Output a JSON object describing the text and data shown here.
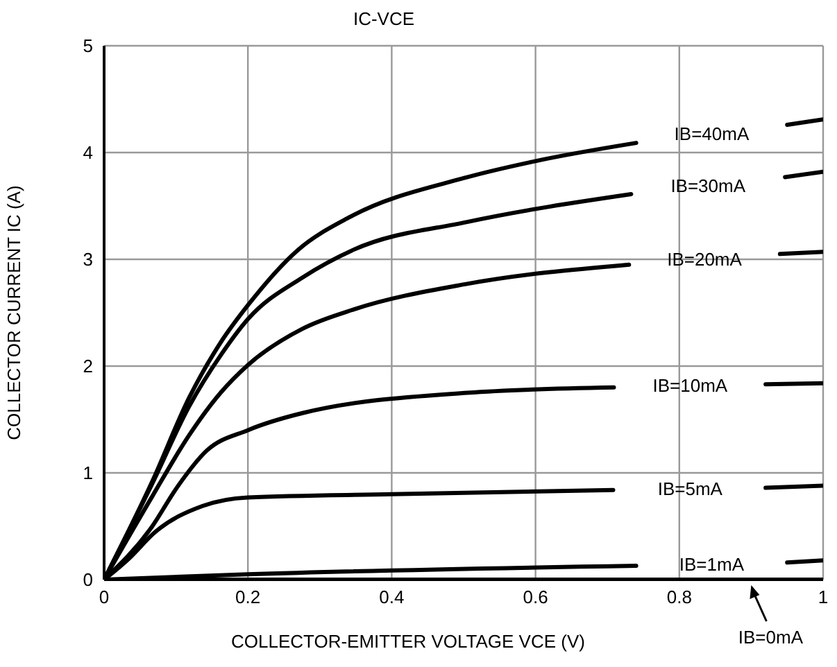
{
  "chart_data": {
    "type": "line",
    "title": "IC-VCE",
    "xlabel": "COLLECTOR-EMITTER VOLTAGE VCE (V)",
    "ylabel": "COLLECTOR CURRENT IC (A)",
    "xlim": [
      0,
      1
    ],
    "ylim": [
      0,
      5
    ],
    "xticks": [
      0,
      0.2,
      0.4,
      0.6,
      0.8,
      1
    ],
    "yticks": [
      0,
      1,
      2,
      3,
      4,
      5
    ],
    "grid": true,
    "marker": "none",
    "line_style": "solid",
    "series": [
      {
        "name": "IB=40mA",
        "color": "#000000",
        "x": [
          0,
          0.067,
          0.118,
          0.162,
          0.2,
          0.27,
          0.34,
          0.5,
          0.6,
          0.74,
          0.845,
          0.95,
          1
        ],
        "values": [
          0,
          0.92,
          1.7,
          2.22,
          2.57,
          3.09,
          3.39,
          3.76,
          3.92,
          4.09,
          null,
          4.26,
          4.31
        ]
      },
      {
        "name": "IB=30mA",
        "color": "#000000",
        "x": [
          0,
          0.067,
          0.118,
          0.162,
          0.2,
          0.276,
          0.347,
          0.505,
          0.733,
          0.84,
          0.947,
          1
        ],
        "values": [
          0,
          0.9,
          1.62,
          2.1,
          2.44,
          2.83,
          3.09,
          3.35,
          3.61,
          null,
          3.77,
          3.82
        ]
      },
      {
        "name": "IB=20mA",
        "color": "#000000",
        "x": [
          0,
          0.067,
          0.118,
          0.162,
          0.2,
          0.276,
          0.347,
          0.505,
          0.73,
          0.835,
          0.94,
          1
        ],
        "values": [
          0,
          0.78,
          1.35,
          1.75,
          2.01,
          2.35,
          2.53,
          2.77,
          2.95,
          null,
          3.05,
          3.07
        ]
      },
      {
        "name": "IB=10mA",
        "color": "#000000",
        "x": [
          0,
          0.067,
          0.1,
          0.143,
          0.2,
          0.276,
          0.505,
          0.709,
          0.815,
          0.92,
          1
        ],
        "values": [
          0,
          0.5,
          0.85,
          1.21,
          1.4,
          1.56,
          1.75,
          1.8,
          null,
          1.83,
          1.84
        ]
      },
      {
        "name": "IB=5mA",
        "color": "#000000",
        "x": [
          0,
          0.035,
          0.07,
          0.137,
          0.2,
          0.4,
          0.708,
          0.815,
          0.92,
          1
        ],
        "values": [
          0,
          0.2,
          0.44,
          0.69,
          0.77,
          0.8,
          0.84,
          null,
          0.86,
          0.88
        ]
      },
      {
        "name": "IB=1mA",
        "color": "#000000",
        "x": [
          0,
          0.2,
          0.74,
          0.845,
          0.95,
          1
        ],
        "values": [
          0,
          0.05,
          0.13,
          null,
          0.16,
          0.18
        ]
      },
      {
        "color": "#000000",
        "x": [
          0,
          1
        ],
        "values": [
          0,
          0
        ]
      }
    ],
    "annotations": [
      {
        "text": "IB=0mA",
        "x": 0.9,
        "y": 0
      }
    ]
  }
}
